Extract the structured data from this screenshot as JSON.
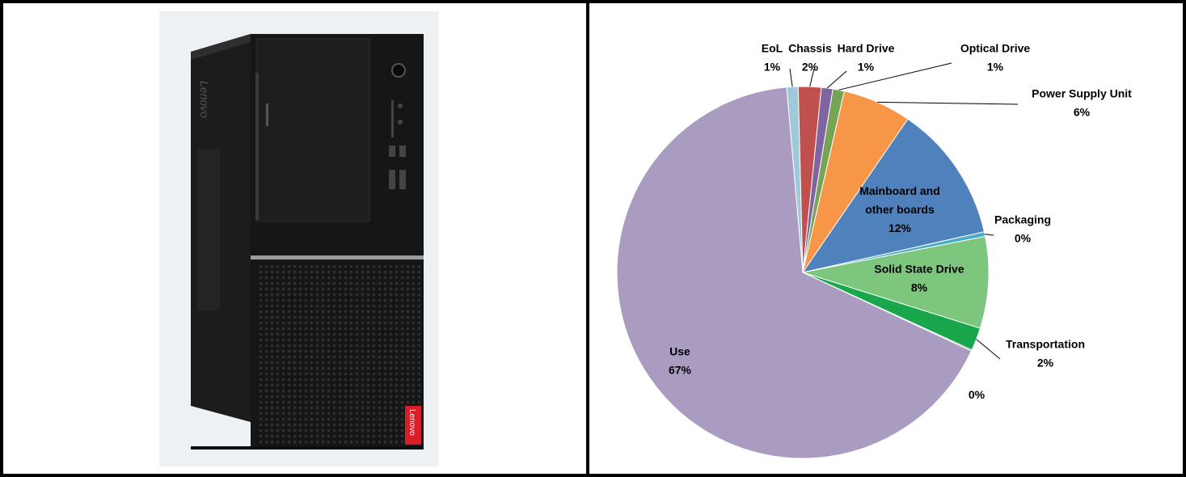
{
  "chart_data": {
    "type": "pie",
    "title": "",
    "slices": [
      {
        "label": "EoL",
        "pct_label": "1%",
        "value": 1,
        "color": "#9fc8d8"
      },
      {
        "label": "Chassis",
        "pct_label": "2%",
        "value": 2,
        "color": "#c0504d"
      },
      {
        "label": "Hard Drive",
        "pct_label": "1%",
        "value": 1,
        "color": "#8064a2"
      },
      {
        "label": "Optical Drive",
        "pct_label": "1%",
        "value": 1,
        "color": "#77a454"
      },
      {
        "label": "Power Supply Unit",
        "pct_label": "6%",
        "value": 6,
        "color": "#f79646"
      },
      {
        "label": "Mainboard and other boards",
        "pct_label": "12%",
        "value": 12,
        "color": "#4f81bd"
      },
      {
        "label": "Packaging",
        "pct_label": "0%",
        "value": 0.4,
        "color": "#4bacc6"
      },
      {
        "label": "Solid State Drive",
        "pct_label": "8%",
        "value": 8,
        "color": "#7dc67e"
      },
      {
        "label": "Transportation",
        "pct_label": "2%",
        "value": 2,
        "color": "#1aa64a"
      },
      {
        "label": "",
        "pct_label": "0%",
        "value": 0.1,
        "color": "#2e7d32"
      },
      {
        "label": "Use",
        "pct_label": "67%",
        "value": 67,
        "color": "#aa9bc0"
      }
    ]
  },
  "product_image": {
    "subject": "desktop-tower-pc",
    "logo_text": "Lenovo"
  }
}
